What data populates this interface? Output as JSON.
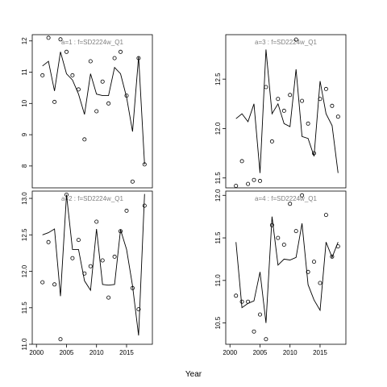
{
  "chart_data": {
    "type": "scatter",
    "xlabel": "Year",
    "colors": {
      "points": "#000000",
      "line": "#000000",
      "title": "#808080",
      "frame": "#000000"
    },
    "x": [
      2001,
      2002,
      2003,
      2004,
      2005,
      2006,
      2007,
      2008,
      2009,
      2010,
      2011,
      2012,
      2013,
      2014,
      2015,
      2016,
      2017,
      2018
    ],
    "x_ticks": [
      "2000",
      "2005",
      "2010",
      "2015"
    ],
    "panels": [
      {
        "id": "a1",
        "title": "a=1  :  f=SD2224w_Q1",
        "ylim": [
          7.3,
          12.2
        ],
        "y_ticks": [
          "8",
          "9",
          "10",
          "11",
          "12"
        ],
        "observed": [
          10.9,
          12.1,
          10.05,
          12.05,
          11.65,
          10.9,
          10.45,
          8.85,
          11.35,
          9.75,
          10.7,
          10.0,
          11.45,
          11.65,
          10.25,
          7.5,
          11.45,
          8.05
        ],
        "fitted": [
          11.2,
          11.35,
          10.4,
          11.65,
          10.95,
          10.75,
          10.3,
          9.65,
          10.95,
          10.3,
          10.25,
          10.25,
          11.15,
          10.95,
          10.2,
          9.1,
          11.5,
          8.05
        ]
      },
      {
        "id": "a3",
        "title": "a=3  :  f=SD2224w_Q1",
        "ylim": [
          11.4,
          12.95
        ],
        "y_ticks": [
          "11.5",
          "12.0",
          "12.5"
        ],
        "observed": [
          11.42,
          11.67,
          11.44,
          11.48,
          11.47,
          12.42,
          11.87,
          12.3,
          12.18,
          12.34,
          12.9,
          12.28,
          12.05,
          11.75,
          12.3,
          12.4,
          12.23,
          12.12
        ],
        "fitted": [
          12.1,
          12.15,
          12.07,
          12.25,
          11.55,
          12.8,
          12.15,
          12.25,
          12.05,
          12.02,
          12.6,
          11.92,
          11.9,
          11.72,
          12.48,
          12.15,
          12.03,
          11.55
        ]
      },
      {
        "id": "a2",
        "title": "a=2  :  f=SD2224w_Q1",
        "ylim": [
          11.0,
          13.1
        ],
        "y_ticks": [
          "11.0",
          "11.5",
          "12.0",
          "12.5",
          "13.0"
        ],
        "observed": [
          11.85,
          12.4,
          11.82,
          11.07,
          13.05,
          12.18,
          12.43,
          11.97,
          12.07,
          12.68,
          12.15,
          11.64,
          12.2,
          12.55,
          12.83,
          11.77,
          11.48,
          12.9
        ],
        "fitted": [
          12.5,
          12.53,
          12.58,
          11.66,
          13.05,
          12.3,
          12.3,
          11.87,
          11.74,
          12.58,
          11.82,
          11.81,
          11.82,
          12.57,
          12.3,
          11.8,
          11.12,
          13.06
        ]
      },
      {
        "id": "a4",
        "title": "a=4  :  f=SD2224w_Q1",
        "ylim": [
          10.25,
          12.05
        ],
        "y_ticks": [
          "10.5",
          "11.0",
          "11.5",
          "12.0"
        ],
        "observed": [
          10.82,
          10.75,
          10.75,
          10.4,
          10.6,
          10.31,
          11.65,
          11.5,
          11.42,
          11.9,
          11.58,
          12.0,
          11.1,
          11.22,
          10.97,
          11.77,
          11.28,
          11.4
        ],
        "fitted": [
          11.45,
          10.68,
          10.73,
          10.76,
          11.1,
          10.5,
          11.75,
          11.18,
          11.25,
          11.24,
          11.27,
          11.67,
          10.95,
          10.77,
          10.65,
          11.45,
          11.27,
          11.45
        ]
      }
    ]
  }
}
